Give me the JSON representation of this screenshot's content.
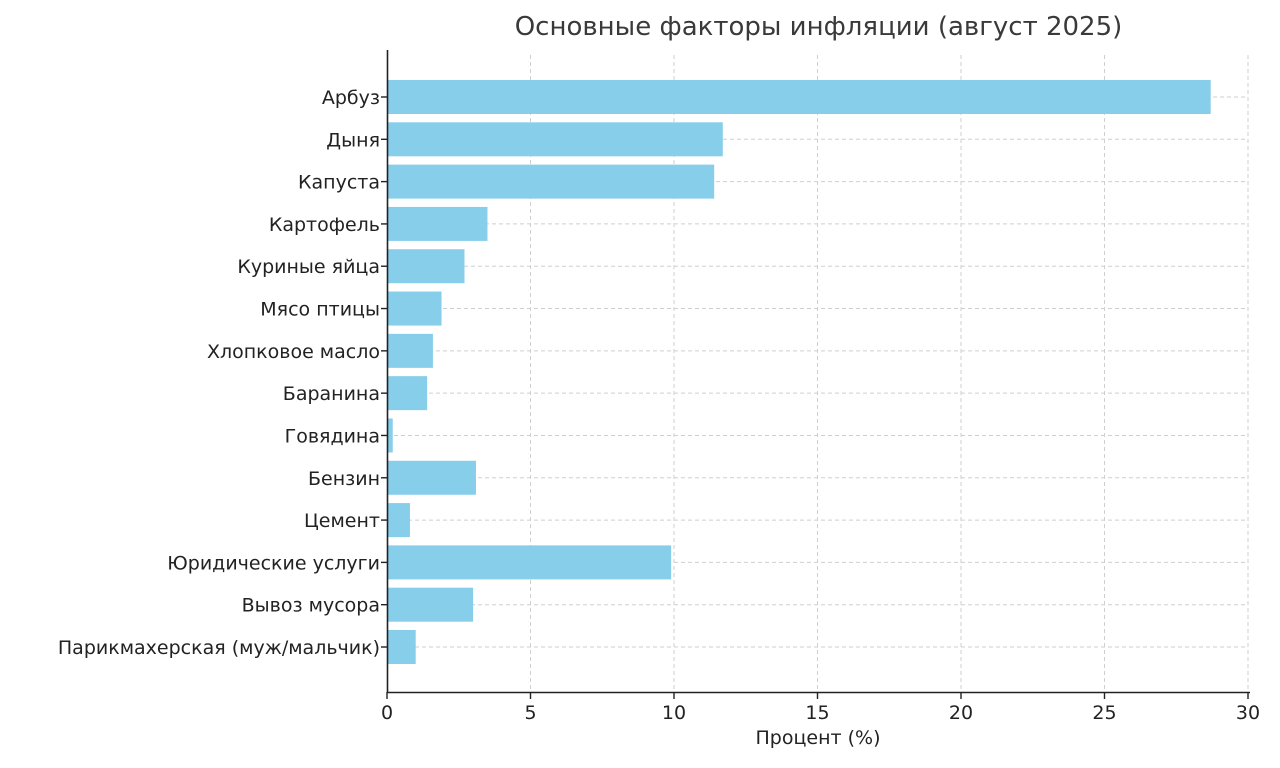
{
  "chart_data": {
    "type": "bar",
    "orientation": "horizontal",
    "title": "Основные факторы инфляции (август 2025)",
    "xlabel": "Процент (%)",
    "ylabel": "",
    "xlim": [
      0,
      30
    ],
    "xticks": [
      0,
      5,
      10,
      15,
      20,
      25,
      30
    ],
    "grid": true,
    "bar_color": "#87CEEB",
    "categories": [
      "Арбуз",
      "Дыня",
      "Капуста",
      "Картофель",
      "Куриные яйца",
      "Мясо птицы",
      "Хлопковое масло",
      "Баранина",
      "Говядина",
      "Бензин",
      "Цемент",
      "Юридические услуги",
      "Вывоз мусора",
      "Парикмахерская (муж/мальчик)"
    ],
    "values": [
      28.7,
      11.7,
      11.4,
      3.5,
      2.7,
      1.9,
      1.6,
      1.4,
      0.2,
      3.1,
      0.8,
      9.9,
      3.0,
      1.0
    ]
  }
}
